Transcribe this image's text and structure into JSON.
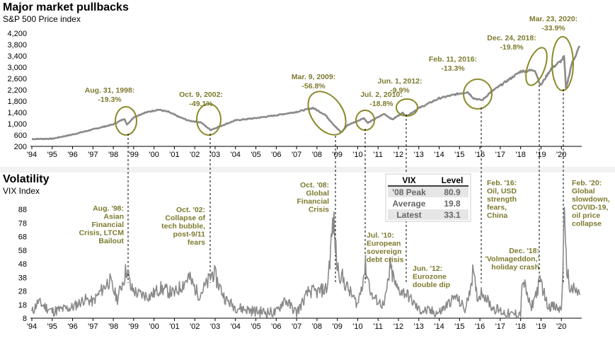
{
  "colors": {
    "series": "#8a8a8a",
    "annotation": "#7d7a2e",
    "ellipse": "#8a8a2a",
    "band": "#f2f2f2"
  },
  "chart_data": [
    {
      "type": "line",
      "title": "Major market pullbacks",
      "subtitle": "S&P 500 Price index",
      "ylim": [
        200,
        4200
      ],
      "yticks": [
        200,
        600,
        1000,
        1400,
        1800,
        2200,
        2600,
        3000,
        3400,
        3800,
        4200
      ],
      "ytick_labels": [
        "200",
        "600",
        "1,000",
        "1,400",
        "1,800",
        "2,200",
        "2,600",
        "3,000",
        "3,400",
        "3,800",
        "4,200"
      ],
      "xlim": [
        1994,
        2021
      ],
      "xticks": [
        1994,
        1995,
        1996,
        1997,
        1998,
        1999,
        2000,
        2001,
        2002,
        2003,
        2004,
        2005,
        2006,
        2007,
        2008,
        2009,
        2010,
        2011,
        2012,
        2013,
        2014,
        2015,
        2016,
        2017,
        2018,
        2019,
        2020
      ],
      "xtick_labels": [
        "'94",
        "'95",
        "'96",
        "'97",
        "'98",
        "'99",
        "'00",
        "'01",
        "'02",
        "'03",
        "'04",
        "'05",
        "'06",
        "'07",
        "'08",
        "'09",
        "'10",
        "'11",
        "'12",
        "'13",
        "'14",
        "'15",
        "'16",
        "'17",
        "'18",
        "'19",
        "'20"
      ],
      "x": [
        1994.0,
        1995.0,
        1996.0,
        1997.0,
        1998.0,
        1998.55,
        1998.67,
        1999.0,
        1999.5,
        2000.2,
        2000.7,
        2001.2,
        2001.7,
        2002.3,
        2002.77,
        2003.2,
        2004.0,
        2005.0,
        2006.0,
        2007.0,
        2007.8,
        2008.4,
        2008.9,
        2009.19,
        2009.5,
        2010.3,
        2010.5,
        2011.3,
        2011.7,
        2012.2,
        2012.42,
        2013.0,
        2014.0,
        2015.0,
        2015.4,
        2015.7,
        2016.11,
        2016.5,
        2017.0,
        2018.0,
        2018.7,
        2018.98,
        2019.5,
        2020.0,
        2020.13,
        2020.23,
        2020.5,
        2020.9
      ],
      "values": [
        460,
        470,
        620,
        800,
        980,
        1180,
        960,
        1230,
        1380,
        1500,
        1420,
        1250,
        1110,
        1050,
        780,
        900,
        1120,
        1200,
        1300,
        1420,
        1560,
        1320,
        900,
        690,
        950,
        1200,
        1030,
        1350,
        1150,
        1380,
        1280,
        1550,
        1900,
        2070,
        2120,
        1900,
        1830,
        2100,
        2350,
        2850,
        2900,
        2350,
        2950,
        3230,
        3380,
        2240,
        3100,
        3750
      ],
      "annotations": [
        {
          "date": "Aug. 31, 1998:",
          "change": "-19.3%"
        },
        {
          "date": "Oct. 9, 2002:",
          "change": "-49.1%"
        },
        {
          "date": "Mar. 9, 2009:",
          "change": "-56.8%"
        },
        {
          "date": "Jul. 2, 2010:",
          "change": "-18.8%"
        },
        {
          "date": "Jun. 1, 2012:",
          "change": "-9.9%"
        },
        {
          "date": "Feb. 11, 2016:",
          "change": "-13.3%"
        },
        {
          "date": "Dec. 24, 2018:",
          "change": "-19.8%"
        },
        {
          "date": "Mar. 23, 2020:",
          "change": "-33.9%"
        }
      ]
    },
    {
      "type": "line",
      "title": "Volatility",
      "subtitle": "VIX Index",
      "ylim": [
        8,
        88
      ],
      "yticks": [
        8,
        18,
        28,
        38,
        48,
        58,
        68,
        78,
        88
      ],
      "ytick_labels": [
        "8",
        "18",
        "28",
        "38",
        "48",
        "58",
        "68",
        "78",
        "88"
      ],
      "xlim": [
        1994,
        2021
      ],
      "xticks": [
        1994,
        1995,
        1996,
        1997,
        1998,
        1999,
        2000,
        2001,
        2002,
        2003,
        2004,
        2005,
        2006,
        2007,
        2008,
        2009,
        2010,
        2011,
        2012,
        2013,
        2014,
        2015,
        2016,
        2017,
        2018,
        2019,
        2020
      ],
      "xtick_labels": [
        "'94",
        "'95",
        "'96",
        "'97",
        "'98",
        "'99",
        "'00",
        "'01",
        "'02",
        "'03",
        "'04",
        "'05",
        "'06",
        "'07",
        "'08",
        "'09",
        "'10",
        "'11",
        "'12",
        "'13",
        "'14",
        "'15",
        "'16",
        "'17",
        "'18",
        "'19",
        "'20"
      ],
      "x": [
        1994.0,
        1994.3,
        1995.0,
        1996.0,
        1996.6,
        1997.0,
        1997.8,
        1998.2,
        1998.67,
        1998.85,
        1999.2,
        1999.8,
        2000.3,
        2001.0,
        2001.7,
        2002.2,
        2002.6,
        2002.9,
        2003.5,
        2004.0,
        2005.0,
        2006.0,
        2006.4,
        2007.0,
        2007.6,
        2008.0,
        2008.5,
        2008.8,
        2009.0,
        2009.5,
        2010.0,
        2010.38,
        2010.7,
        2011.3,
        2011.6,
        2011.9,
        2012.4,
        2013.0,
        2014.0,
        2014.8,
        2015.3,
        2015.65,
        2015.9,
        2016.1,
        2016.6,
        2017.5,
        2018.0,
        2018.1,
        2018.5,
        2018.98,
        2019.3,
        2020.0,
        2020.15,
        2020.2,
        2020.4,
        2020.7,
        2020.9
      ],
      "values": [
        12,
        20,
        13,
        16,
        22,
        20,
        36,
        22,
        45,
        30,
        26,
        24,
        30,
        26,
        38,
        25,
        33,
        42,
        22,
        16,
        13,
        12,
        22,
        12,
        28,
        27,
        30,
        80,
        45,
        30,
        18,
        46,
        24,
        17,
        45,
        30,
        26,
        14,
        12,
        24,
        14,
        41,
        22,
        28,
        16,
        10,
        12,
        37,
        15,
        36,
        18,
        14,
        82,
        55,
        30,
        28,
        25
      ],
      "vix_table": {
        "headers": [
          "VIX",
          "Level"
        ],
        "rows": [
          {
            "label": "'08 Peak",
            "value": "80.9"
          },
          {
            "label": "Average",
            "value": "19.8"
          },
          {
            "label": "Latest",
            "value": "33.1"
          }
        ]
      },
      "annotations": [
        {
          "lines": [
            "Aug. '98:",
            "Asian",
            "Financial",
            "Crisis, LTCM",
            "Bailout"
          ]
        },
        {
          "lines": [
            "Oct. '02:",
            "Collapse of",
            "tech bubble,",
            "post-9/11",
            "fears"
          ]
        },
        {
          "lines": [
            "Oct. '08:",
            "Global",
            "Financial",
            "Crisis"
          ]
        },
        {
          "lines": [
            "Jul. '10:",
            "European",
            "sovereign",
            "debt crisis"
          ]
        },
        {
          "lines": [
            "Jun. '12:",
            "Eurozone",
            "double dip"
          ]
        },
        {
          "lines": [
            "Feb. '16:",
            "Oil, USD",
            "strength",
            "fears,",
            "China"
          ]
        },
        {
          "lines": [
            "Dec. '18:",
            "'Volmageddon,'",
            "holiday crash"
          ]
        },
        {
          "lines": [
            "Feb. '20:",
            "Global",
            "slowdown,",
            "COVID-19,",
            "oil price",
            "collapse"
          ]
        }
      ]
    }
  ]
}
